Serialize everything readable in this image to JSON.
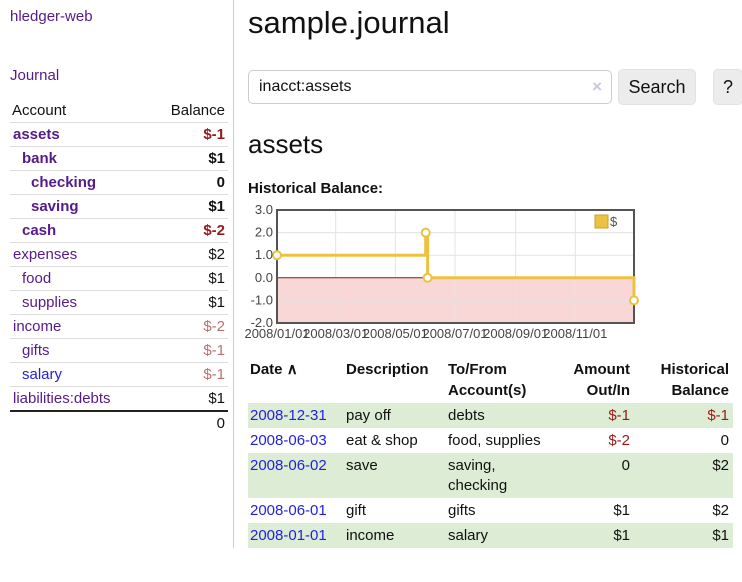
{
  "app": {
    "brand": "hledger-web",
    "nav_journal": "Journal"
  },
  "sidebar": {
    "header": {
      "account": "Account",
      "balance": "Balance"
    },
    "accounts": [
      {
        "name": "assets",
        "depth": 1,
        "bold": true,
        "balance": "$-1",
        "balance_color": "#971a1a"
      },
      {
        "name": "bank",
        "depth": 2,
        "bold": true,
        "balance": "$1",
        "balance_color": "#111111"
      },
      {
        "name": "checking",
        "depth": 3,
        "bold": true,
        "balance": "0",
        "balance_color": "#111111"
      },
      {
        "name": "saving",
        "depth": 3,
        "bold": true,
        "balance": "$1",
        "balance_color": "#111111"
      },
      {
        "name": "cash",
        "depth": 2,
        "bold": true,
        "balance": "$-2",
        "balance_color": "#971a1a"
      },
      {
        "name": "expenses",
        "depth": 1,
        "bold": false,
        "balance": "$2",
        "balance_color": "#111111"
      },
      {
        "name": "food",
        "depth": 2,
        "bold": false,
        "balance": "$1",
        "balance_color": "#111111"
      },
      {
        "name": "supplies",
        "depth": 2,
        "bold": false,
        "balance": "$1",
        "balance_color": "#111111"
      },
      {
        "name": "income",
        "depth": 1,
        "bold": false,
        "balance": "$-2",
        "balance_color": "#bc6f6f"
      },
      {
        "name": "gifts",
        "depth": 2,
        "bold": false,
        "balance": "$-1",
        "balance_color": "#bc6f6f"
      },
      {
        "name": "salary",
        "depth": 2,
        "bold": false,
        "balance": "$-1",
        "balance_color": "#bc6f6f",
        "link_color": "#2222dd"
      },
      {
        "name": "liabilities:debts",
        "depth": 1,
        "bold": false,
        "balance": "$1",
        "balance_color": "#111111"
      }
    ],
    "total": "0"
  },
  "header": {
    "title": "sample.journal"
  },
  "search": {
    "value": "inacct:assets",
    "clear_icon": "×",
    "button": "Search",
    "help_button": "?"
  },
  "account_page": {
    "title": "assets",
    "chart_label": "Historical Balance:"
  },
  "chart_data": {
    "type": "line",
    "title": "Historical Balance",
    "legend": "$",
    "x_range": [
      "2008-01-01",
      "2008-12-31"
    ],
    "ylim": [
      -2,
      3
    ],
    "y_ticks": [
      "3.0",
      "2.0",
      "1.0",
      "0.0",
      "-1.0",
      "-2.0"
    ],
    "x_ticks": [
      "2008/01/01",
      "2008/03/01",
      "2008/05/01",
      "2008/07/01",
      "2008/09/01",
      "2008/11/01"
    ],
    "points": [
      {
        "date": "2008-01-01",
        "value": 1
      },
      {
        "date": "2008-06-01",
        "value": 2
      },
      {
        "date": "2008-06-03",
        "value": 0
      },
      {
        "date": "2008-12-31",
        "value": -1
      }
    ],
    "colors": {
      "line": "#edc240",
      "negative_region": "#f9d7d7",
      "zero_line": "#8b1a1a",
      "grid": "#e3e3e3",
      "border": "#545454"
    }
  },
  "table": {
    "sort_icon": "∧",
    "headers": [
      {
        "line1": "Date"
      },
      {
        "line1": "Description"
      },
      {
        "line1": "To/From",
        "line2": "Account(s)"
      },
      {
        "line1": "Amount",
        "line2": "Out/In"
      },
      {
        "line1": "Historical",
        "line2": "Balance"
      }
    ],
    "rows": [
      {
        "date": "2008-12-31",
        "description": "pay off",
        "accounts": "debts",
        "amount": "$-1",
        "amount_neg": true,
        "balance": "$-1",
        "balance_neg": true,
        "shaded": true
      },
      {
        "date": "2008-06-03",
        "description": "eat & shop",
        "accounts": "food, supplies",
        "amount": "$-2",
        "amount_neg": true,
        "balance": "0",
        "balance_neg": false,
        "shaded": false
      },
      {
        "date": "2008-06-02",
        "description": "save",
        "accounts": "saving, checking",
        "amount": "0",
        "amount_neg": false,
        "balance": "$2",
        "balance_neg": false,
        "shaded": true
      },
      {
        "date": "2008-06-01",
        "description": "gift",
        "accounts": "gifts",
        "amount": "$1",
        "amount_neg": false,
        "balance": "$2",
        "balance_neg": false,
        "shaded": false
      },
      {
        "date": "2008-01-01",
        "description": "income",
        "accounts": "salary",
        "amount": "$1",
        "amount_neg": false,
        "balance": "$1",
        "balance_neg": false,
        "shaded": true
      }
    ]
  }
}
